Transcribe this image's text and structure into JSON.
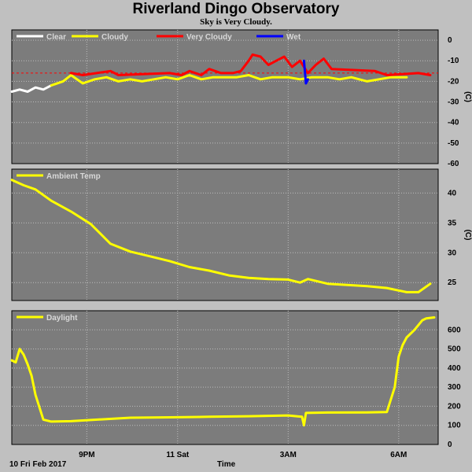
{
  "page": {
    "title": "Riverland Dingo Observatory",
    "subtitle": "Sky is Very Cloudy.",
    "date_label": "10 Fri Feb 2017",
    "xaxis_label": "Time"
  },
  "colors": {
    "background": "#c0c0c0",
    "plot_bg": "#7c7c7c",
    "grid": "#bcbcbc",
    "line_yellow": "#ffff00",
    "clear": "#ffffff",
    "very_cloudy": "#ff0000",
    "wet": "#0000ff",
    "threshold": "#ff0000"
  },
  "x_ticks": [
    "9PM",
    "11 Sat",
    "3AM",
    "6AM"
  ],
  "chart_data": [
    {
      "type": "line",
      "id": "sky",
      "ylabel": "(C)",
      "ylim": [
        -60,
        5
      ],
      "yticks": [
        0,
        -10,
        -20,
        -30,
        -40,
        -50,
        -60
      ],
      "grid": true,
      "legend_placement": "top-left",
      "legend": [
        {
          "name": "Clear",
          "color": "#ffffff"
        },
        {
          "name": "Cloudy",
          "color": "#ffff00"
        },
        {
          "name": "Very Cloudy",
          "color": "#ff0000"
        },
        {
          "name": "Wet",
          "color": "#0000ff"
        }
      ],
      "threshold": -16,
      "series": [
        {
          "name": "Clear",
          "color": "#ffffff",
          "x": [
            0.0,
            0.2,
            0.4,
            0.6,
            0.8,
            1.0
          ],
          "y": [
            -25,
            -24,
            -25,
            -23,
            -24,
            -22
          ]
        },
        {
          "name": "Cloudy",
          "color": "#ffff00",
          "x": [
            1.0,
            1.3,
            1.5,
            1.8,
            2.1,
            2.4,
            2.7,
            3.0,
            3.3,
            3.6,
            3.9,
            4.2,
            4.5,
            4.8,
            5.1,
            5.4,
            5.7,
            6.0,
            6.3,
            6.6,
            7.0,
            7.3,
            7.6,
            8.0,
            8.3,
            8.6,
            9.0,
            9.3,
            9.6,
            10.0
          ],
          "y": [
            -22,
            -20,
            -17,
            -21,
            -19,
            -18,
            -20,
            -19,
            -20,
            -19,
            -18,
            -19,
            -17,
            -19,
            -18,
            -18,
            -18,
            -17,
            -19,
            -18,
            -18,
            -19,
            -18,
            -18,
            -19,
            -18,
            -20,
            -19,
            -18,
            -18
          ]
        },
        {
          "name": "Very Cloudy",
          "color": "#ff0000",
          "x": [
            1.5,
            1.8,
            2.5,
            2.7,
            4.0,
            4.3,
            4.5,
            4.8,
            5.0,
            5.3,
            5.6,
            5.8,
            6.0,
            6.1,
            6.3,
            6.5,
            6.7,
            6.9,
            7.1,
            7.3,
            7.5,
            7.7,
            7.9,
            8.1,
            9.2,
            9.5,
            10.3,
            10.6
          ],
          "y": [
            -16,
            -17,
            -15,
            -17,
            -16,
            -17,
            -15,
            -17,
            -14,
            -16,
            -16,
            -15,
            -10,
            -7,
            -8,
            -12,
            -10,
            -8,
            -13,
            -10,
            -16,
            -12,
            -9,
            -14,
            -15,
            -17,
            -16,
            -17
          ]
        },
        {
          "name": "Wet",
          "color": "#0000ff",
          "x": [
            7.4,
            7.45,
            7.5
          ],
          "y": [
            -10,
            -21,
            -19
          ]
        }
      ]
    },
    {
      "type": "line",
      "id": "ambient",
      "ylabel": "(C)",
      "ylim": [
        22,
        44
      ],
      "yticks": [
        25,
        30,
        35,
        40
      ],
      "grid": true,
      "legend_placement": "top-left",
      "legend": [
        {
          "name": "Ambient Temp",
          "color": "#ffff00"
        }
      ],
      "series": [
        {
          "name": "Ambient Temp",
          "color": "#ffff00",
          "x": [
            0.0,
            0.3,
            0.6,
            1.0,
            1.5,
            2.0,
            2.5,
            3.0,
            3.5,
            4.0,
            4.5,
            5.0,
            5.5,
            6.0,
            6.5,
            7.0,
            7.3,
            7.5,
            8.0,
            8.5,
            9.0,
            9.5,
            10.0,
            10.3,
            10.6
          ],
          "y": [
            42.2,
            41.3,
            40.6,
            38.7,
            36.9,
            34.8,
            31.5,
            30.2,
            29.4,
            28.6,
            27.6,
            27.0,
            26.2,
            25.8,
            25.6,
            25.5,
            25.0,
            25.6,
            24.8,
            24.6,
            24.4,
            24.1,
            23.4,
            23.4,
            24.8
          ]
        }
      ]
    },
    {
      "type": "line",
      "id": "daylight",
      "ylabel": "",
      "ylim": [
        0,
        700
      ],
      "yticks": [
        0,
        100,
        200,
        300,
        400,
        500,
        600
      ],
      "grid": true,
      "legend_placement": "top-left",
      "legend": [
        {
          "name": "Daylight",
          "color": "#ffff00"
        }
      ],
      "series": [
        {
          "name": "Daylight",
          "color": "#ffff00",
          "x": [
            0.0,
            0.1,
            0.2,
            0.3,
            0.4,
            0.5,
            0.6,
            0.8,
            1.0,
            1.5,
            2.0,
            3.0,
            4.0,
            5.0,
            6.0,
            7.0,
            7.35,
            7.4,
            7.45,
            8.0,
            9.0,
            9.5,
            9.7,
            9.8,
            9.9,
            10.0,
            10.2,
            10.4,
            10.5,
            10.7
          ],
          "y": [
            440,
            430,
            500,
            470,
            420,
            360,
            260,
            130,
            120,
            122,
            128,
            140,
            142,
            145,
            148,
            152,
            145,
            100,
            165,
            167,
            168,
            170,
            300,
            460,
            520,
            560,
            600,
            650,
            660,
            665
          ]
        }
      ]
    }
  ]
}
